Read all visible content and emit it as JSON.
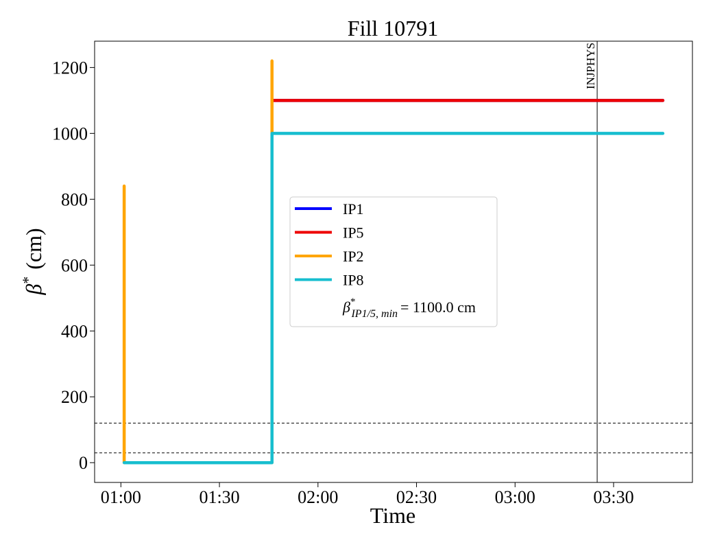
{
  "chart_data": {
    "type": "line",
    "title": "Fill 10791",
    "xlabel": "Time",
    "ylabel": {
      "symbol": "β",
      "sup": "*",
      "unit": "(cm)"
    },
    "xlim": [
      "00:52",
      "03:54"
    ],
    "xticks": [
      "01:00",
      "01:30",
      "02:00",
      "02:30",
      "03:00",
      "03:30"
    ],
    "ylim": [
      -60,
      1280
    ],
    "yticks": [
      0,
      200,
      400,
      600,
      800,
      1000,
      1200
    ],
    "series": [
      {
        "name": "IP1",
        "color": "#0000ff",
        "x": [
          "01:46",
          "03:45"
        ],
        "values": [
          1100,
          1100
        ]
      },
      {
        "name": "IP5",
        "color": "#ee0000",
        "x": [
          "01:46",
          "03:45"
        ],
        "values": [
          1100,
          1100
        ]
      },
      {
        "name": "IP2",
        "color": "#ffa500",
        "x": [
          "01:01",
          "01:01",
          "01:01",
          "01:46",
          "01:46"
        ],
        "values": [
          0,
          840,
          0,
          0,
          1220
        ]
      },
      {
        "name": "IP8",
        "color": "#17becf",
        "x": [
          "01:01",
          "01:46",
          "01:46",
          "03:45"
        ],
        "values": [
          0,
          0,
          1000,
          1000
        ]
      }
    ],
    "hlines": [
      120,
      30
    ],
    "vline": {
      "x": "03:25",
      "label": "INJPHYS"
    },
    "legend_note": {
      "symbol": "β",
      "sup": "*",
      "sub": "IP1/5, min",
      "text": "= 1100.0 cm"
    }
  }
}
